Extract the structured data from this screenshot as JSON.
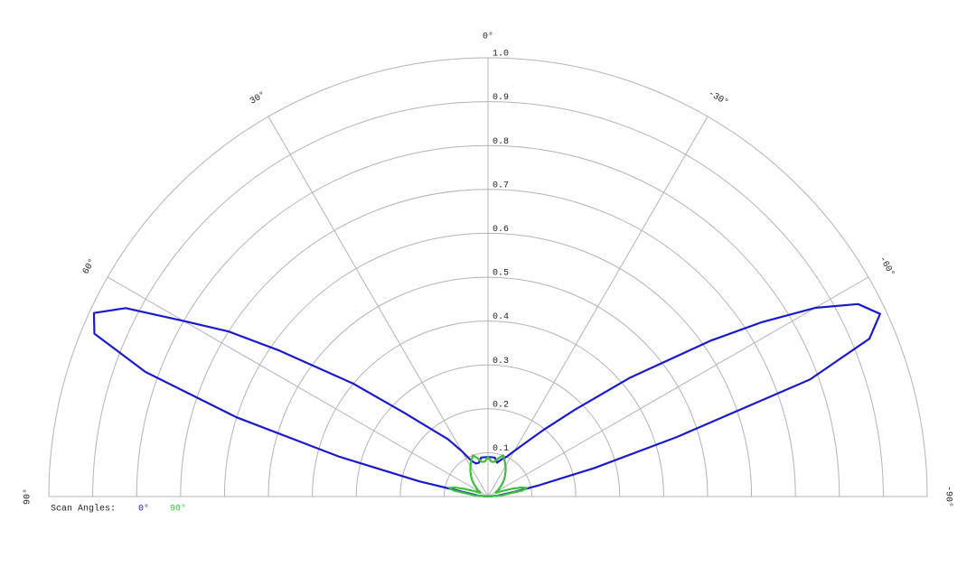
{
  "chart_data": {
    "type": "polar",
    "legend_title": "Scan Angles:",
    "rlim": [
      0,
      1
    ],
    "rticks": [
      0.1,
      0.2,
      0.3,
      0.4,
      0.5,
      0.6,
      0.7,
      0.8,
      0.9,
      {
        "value": 1,
        "label": "1.0"
      }
    ],
    "angleticks": [
      {
        "value": 0,
        "label": "0°"
      },
      {
        "value": 30,
        "label": "30°"
      },
      {
        "value": -30,
        "label": "-30°"
      },
      {
        "value": 60,
        "label": "60°"
      },
      {
        "value": -60,
        "label": "-60°"
      },
      {
        "value": 90,
        "label": "90°"
      },
      {
        "value": -90,
        "label": "-90°"
      }
    ],
    "x": [
      -90,
      -85,
      -80,
      -77.5,
      -75,
      -72.5,
      -70,
      -67.5,
      -65,
      -62.5,
      -60,
      -57.5,
      -55,
      -50,
      -45,
      -40,
      -35,
      -30,
      -25,
      -20,
      -15,
      -10,
      -5,
      0,
      5,
      10,
      15,
      20,
      25,
      30,
      35,
      40,
      45,
      50,
      55,
      57.5,
      60,
      62.5,
      65,
      67.5,
      70,
      72.5,
      75,
      77.5,
      80,
      85,
      90
    ],
    "series": [
      {
        "name": "0°",
        "color": "#1a1acc",
        "values": [
          0,
          0.02,
          0.06,
          0.12,
          0.25,
          0.45,
          0.78,
          0.94,
          0.985,
          0.95,
          0.86,
          0.74,
          0.62,
          0.42,
          0.28,
          0.2,
          0.15,
          0.12,
          0.1,
          0.09,
          0.08,
          0.09,
          0.09,
          0.09,
          0.09,
          0.09,
          0.08,
          0.08,
          0.09,
          0.12,
          0.16,
          0.2,
          0.27,
          0.4,
          0.58,
          0.7,
          0.8,
          0.93,
          0.99,
          0.97,
          0.83,
          0.6,
          0.35,
          0.16,
          0.05,
          0.02,
          0
        ]
      },
      {
        "name": "90°",
        "color": "#3cbf3c",
        "values": [
          0,
          0.03,
          0.08,
          0.09,
          0.08,
          0.06,
          0.04,
          0.03,
          0.02,
          0.02,
          0.02,
          0.03,
          0.03,
          0.04,
          0.05,
          0.06,
          0.07,
          0.08,
          0.09,
          0.1,
          0.09,
          0.08,
          0.08,
          0.09,
          0.08,
          0.08,
          0.09,
          0.1,
          0.09,
          0.08,
          0.07,
          0.06,
          0.05,
          0.04,
          0.03,
          0.03,
          0.02,
          0.02,
          0.02,
          0.03,
          0.04,
          0.06,
          0.08,
          0.09,
          0.08,
          0.03,
          0
        ]
      }
    ]
  }
}
